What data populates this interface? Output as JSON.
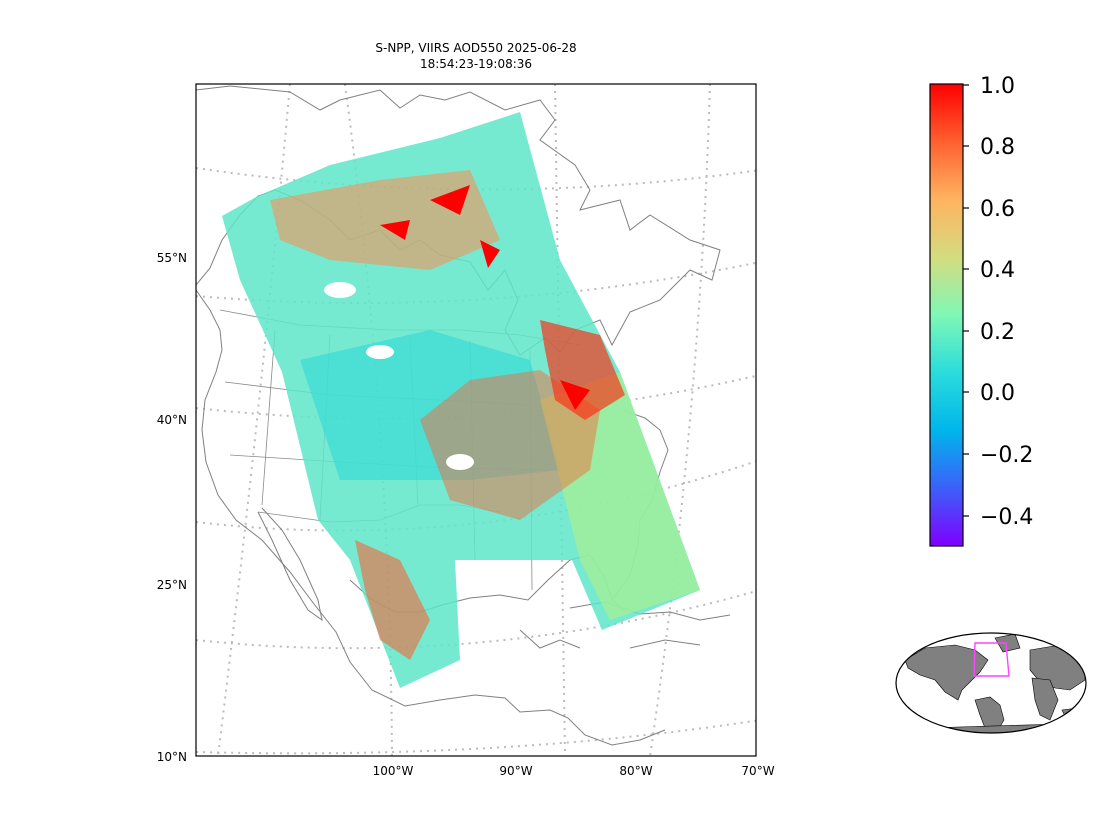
{
  "title": {
    "line1": "S-NPP, VIIRS AOD550 2025-06-28",
    "line2": "18:54:23-19:08:36"
  },
  "map": {
    "lat_labels": [
      "55°N",
      "40°N",
      "25°N",
      "10°N"
    ],
    "lon_labels": [
      "100°W",
      "90°W",
      "80°W",
      "70°W"
    ],
    "swath_field": "AOD550"
  },
  "colorbar": {
    "colormap": "rainbow",
    "min": -0.5,
    "max": 1.0,
    "tick_labels": [
      "1.0",
      "0.8",
      "0.6",
      "0.4",
      "0.2",
      "0.0",
      "−0.2",
      "−0.4"
    ],
    "colors": [
      "#7f00ff",
      "#3c60f9",
      "#00b5eb",
      "#2adcdc",
      "#7ff8b5",
      "#d4dc7f",
      "#ffb360",
      "#ff6030",
      "#ff0000"
    ]
  },
  "inset": {
    "region_box_color": "#ff44ff",
    "land_color": "#808080",
    "ocean_color": "#ffffff"
  }
}
